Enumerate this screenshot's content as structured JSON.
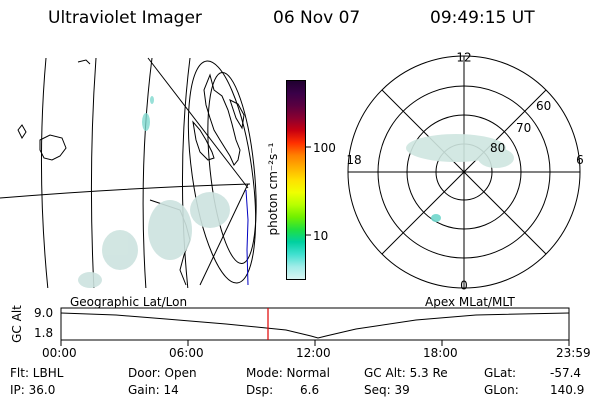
{
  "header": {
    "title": "Ultraviolet Imager",
    "date": "06 Nov 07",
    "time": "09:49:15 UT"
  },
  "colorbar": {
    "unit_label": "photon cm⁻²s⁻¹",
    "tick_high": "100",
    "tick_low": "10",
    "colors": [
      "#200030",
      "#3a0048",
      "#5a0040",
      "#8a0030",
      "#c80010",
      "#ff3000",
      "#ff8000",
      "#ffb000",
      "#ffe000",
      "#f0ff00",
      "#b8ff00",
      "#70f000",
      "#20e040",
      "#00d0a0",
      "#40e0d0",
      "#a0ece8",
      "#d8f4f2"
    ]
  },
  "polar": {
    "labels": {
      "top": "12",
      "bottom": "0",
      "left": "18",
      "right": "6"
    },
    "lat_labels": [
      "60",
      "70",
      "80"
    ]
  },
  "timeline": {
    "yaxis_label": "GC Alt",
    "y_top": "9.0",
    "y_bottom": "1.8",
    "left_label": "Geographic Lat/Lon",
    "right_label": "Apex MLat/MLT",
    "ticks": [
      "00:00",
      "06:00",
      "12:00",
      "18:00",
      "23:59"
    ]
  },
  "info": {
    "filter": "Flt: LBHL",
    "ip": "IP: 36.0",
    "door": "Door: Open",
    "gain": "Gain: 14",
    "mode": "Mode: Normal",
    "dsp_label": "Dsp:",
    "dsp_value": "6.6",
    "gcalt": "GC Alt: 5.3 Re",
    "seq": "Seq: 39",
    "glat_label": "GLat:",
    "glat_value": "-57.4",
    "glon_label": "GLon:",
    "glon_value": "140.9"
  }
}
